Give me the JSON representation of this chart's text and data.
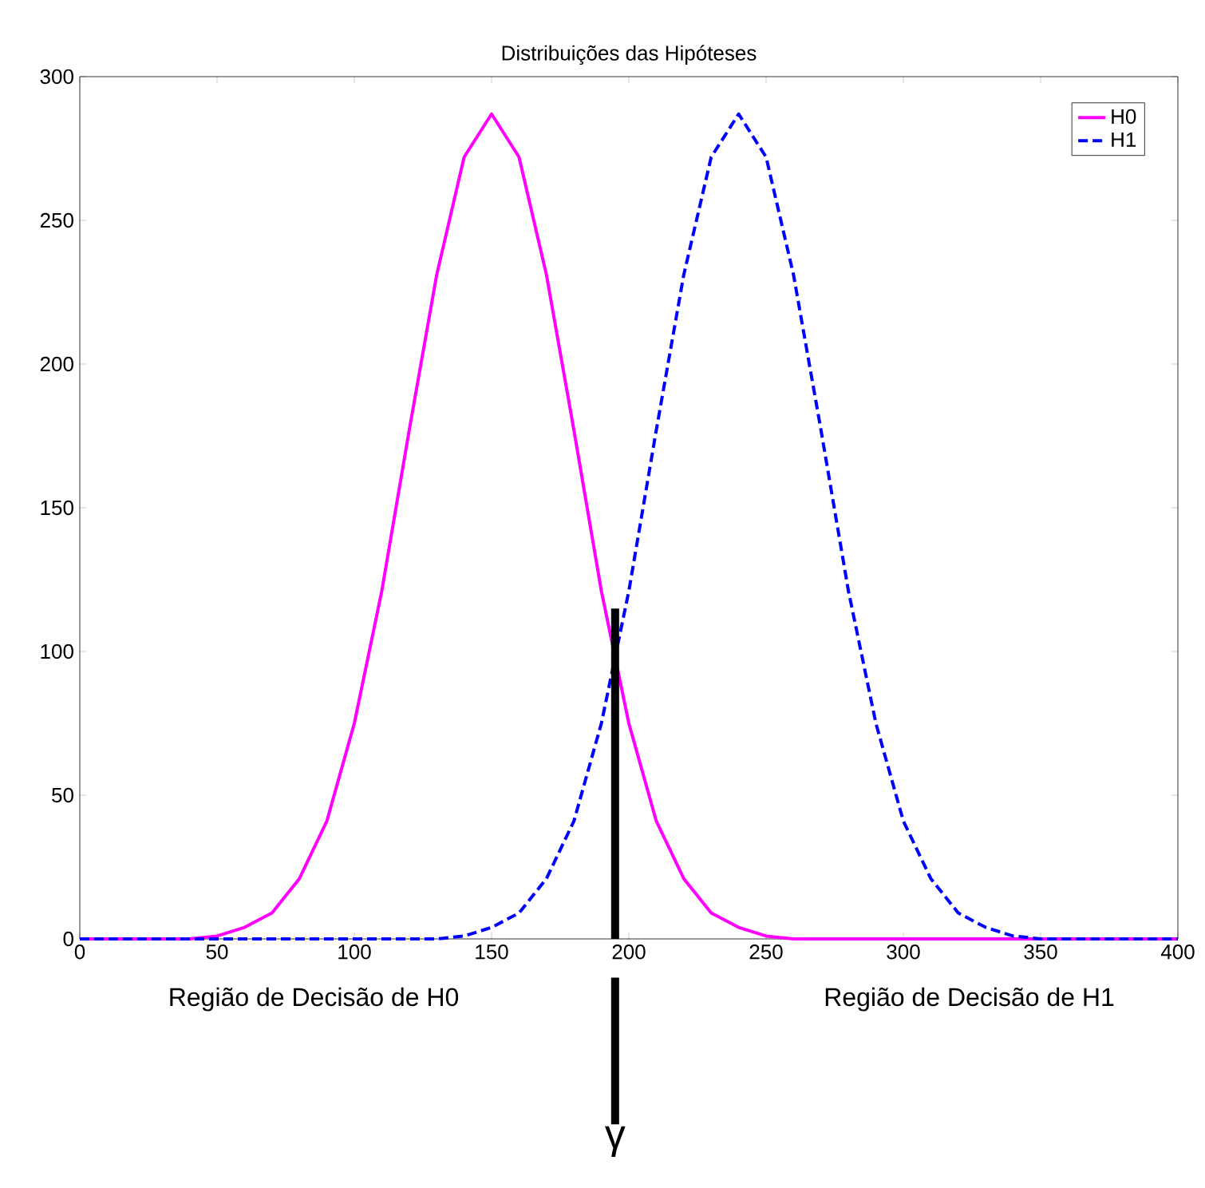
{
  "chart_data": {
    "type": "line",
    "title": "Distribuições das Hipóteses",
    "x": [
      0,
      10,
      20,
      30,
      40,
      50,
      60,
      70,
      80,
      90,
      100,
      110,
      120,
      130,
      140,
      150,
      160,
      170,
      180,
      190,
      200,
      210,
      220,
      230,
      240,
      250,
      260,
      270,
      280,
      290,
      300,
      310,
      320,
      330,
      340,
      350,
      360,
      370,
      380,
      390,
      400
    ],
    "series": [
      {
        "name": "H0",
        "color": "#ff00ff",
        "line_style": "solid",
        "values": [
          0,
          0,
          0,
          0,
          0,
          1,
          4,
          9,
          21,
          41,
          75,
          121,
          177,
          231,
          272,
          287,
          272,
          231,
          177,
          121,
          75,
          41,
          21,
          9,
          4,
          1,
          0,
          0,
          0,
          0,
          0,
          0,
          0,
          0,
          0,
          0,
          0,
          0,
          0,
          0,
          0
        ]
      },
      {
        "name": "H1",
        "color": "#0000ff",
        "line_style": "dashed",
        "values": [
          0,
          0,
          0,
          0,
          0,
          0,
          0,
          0,
          0,
          0,
          0,
          0,
          0,
          0,
          1,
          4,
          9,
          21,
          41,
          75,
          121,
          177,
          231,
          272,
          287,
          272,
          231,
          177,
          121,
          75,
          41,
          21,
          9,
          4,
          1,
          0,
          0,
          0,
          0,
          0,
          0
        ]
      }
    ],
    "xlim": [
      0,
      400
    ],
    "ylim": [
      0,
      300
    ],
    "xticks": [
      0,
      50,
      100,
      150,
      200,
      250,
      300,
      350,
      400
    ],
    "yticks": [
      0,
      50,
      100,
      150,
      200,
      250,
      300
    ],
    "grid": false,
    "legend": "top right",
    "marker": "none",
    "ref_lines": [
      {
        "axis": "x",
        "value": 195,
        "color": "#000000"
      }
    ],
    "annotations": [
      "Região de Decisão de H0",
      "Região de Decisão de H1",
      "γ"
    ]
  }
}
